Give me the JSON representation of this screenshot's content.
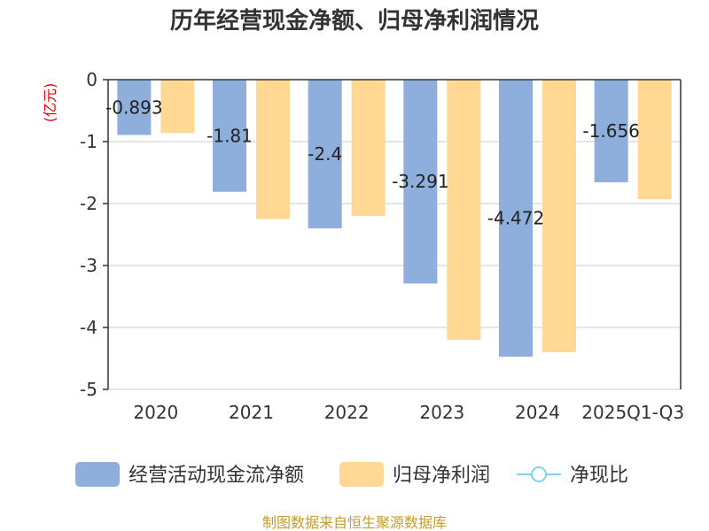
{
  "chart_data": {
    "type": "bar",
    "title": "历年经营现金净额、归母净利润情况",
    "unit_label": "(亿元)",
    "categories": [
      "2020",
      "2021",
      "2022",
      "2023",
      "2024",
      "2025Q1-Q3"
    ],
    "series": [
      {
        "name": "经营活动现金流净额",
        "color": "#8eaedb",
        "values": [
          -0.893,
          -1.81,
          -2.4,
          -3.291,
          -4.472,
          -1.656
        ],
        "labels": [
          "-0.893",
          "-1.81",
          "-2.4",
          "-3.291",
          "-4.472",
          "-1.656"
        ]
      },
      {
        "name": "归母净利润",
        "color": "#ffd993",
        "values": [
          -0.86,
          -2.25,
          -2.2,
          -4.2,
          -4.4,
          -1.93
        ]
      }
    ],
    "line_series": {
      "name": "净现比",
      "color": "#7fd3e6"
    },
    "ylim": [
      -5,
      0
    ],
    "yticks": [
      0,
      -1,
      -2,
      -3,
      -4,
      -5
    ],
    "ytick_labels": [
      "0",
      "-1",
      "-2",
      "-3",
      "-4",
      "-5"
    ],
    "grid": true,
    "legend_position": "bottom"
  },
  "footer": {
    "source": "制图数据来自恒生聚源数据库"
  }
}
